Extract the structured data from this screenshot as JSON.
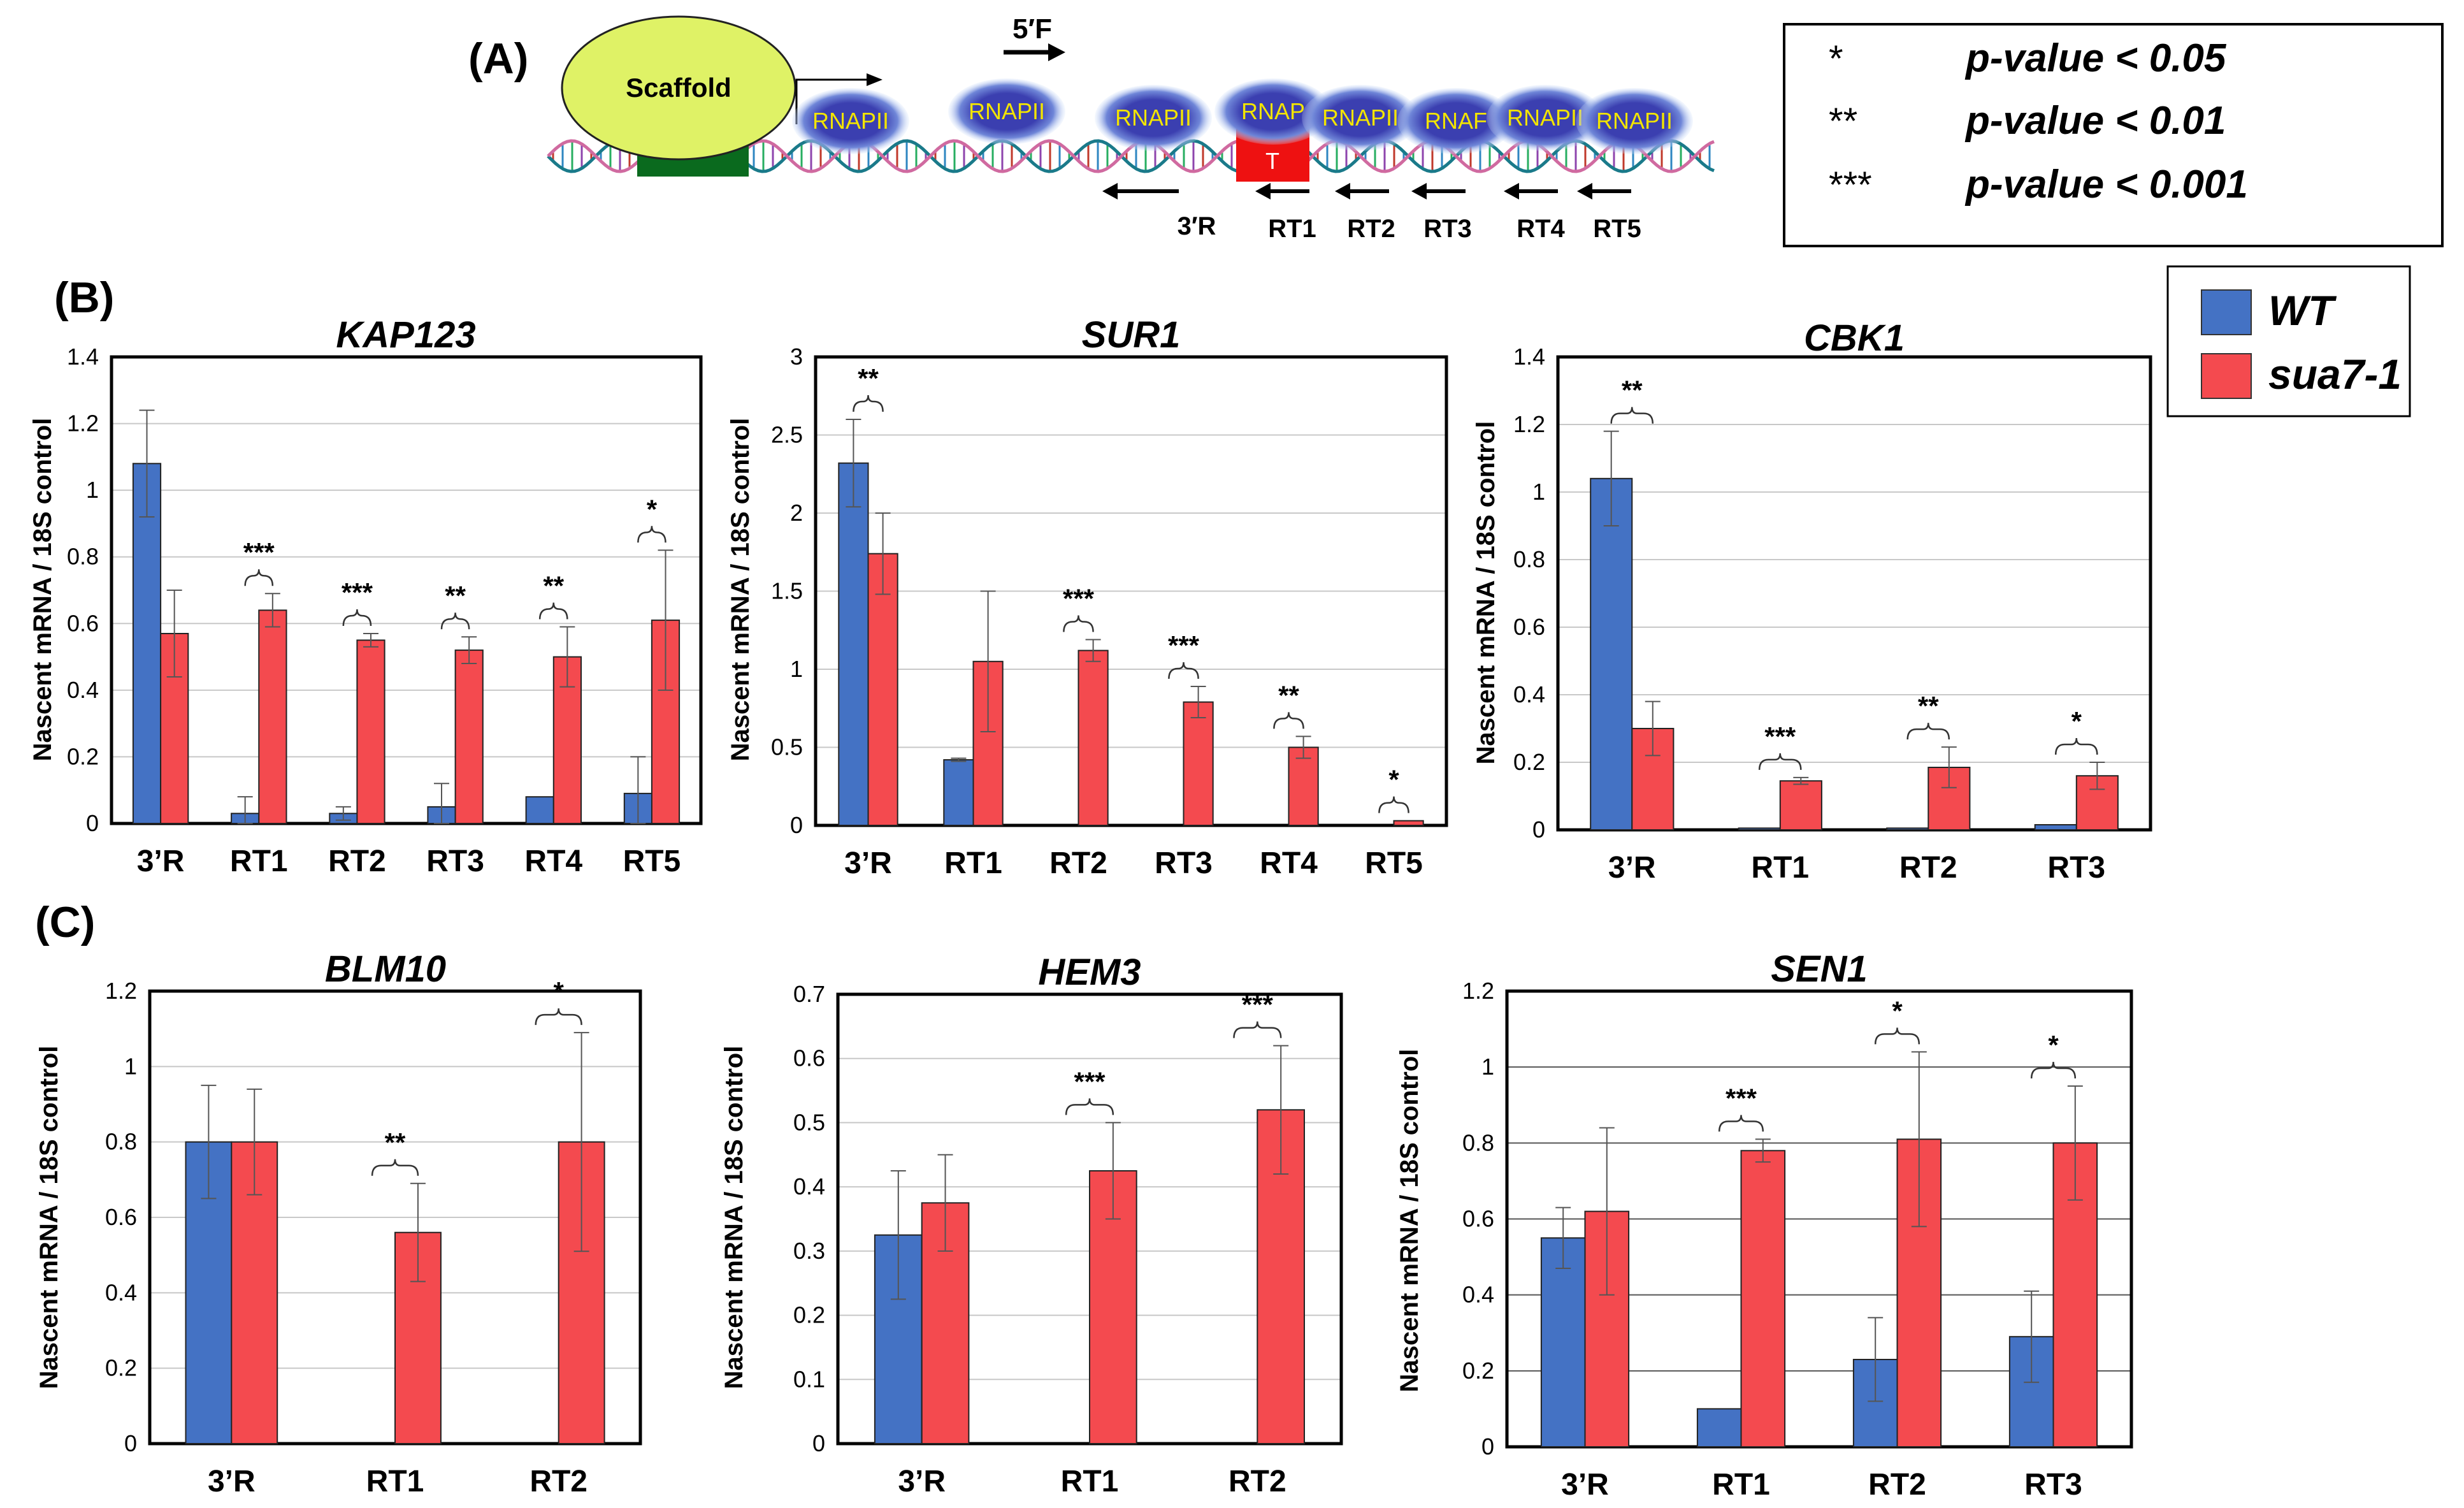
{
  "panel_labels": {
    "a": "(A)",
    "b": "(B)",
    "c": "(C)"
  },
  "colors": {
    "wt": "#4472c4",
    "mutant": "#f44a4f",
    "scaffold": "#dff266",
    "tbox": "#ee1111",
    "rnap": "#3b3fb0",
    "rnap_glow": "#a9c7f2",
    "element": "#0a6a1e"
  },
  "legend": {
    "items": [
      {
        "label": "WT",
        "color": "#4472c4"
      },
      {
        "label": "sua7-1",
        "color": "#f44a4f"
      }
    ]
  },
  "pvalue_key": [
    {
      "symbol": "*",
      "text": "p-value < 0.05"
    },
    {
      "symbol": "**",
      "text": "p-value < 0.01"
    },
    {
      "symbol": "***",
      "text": "p-value < 0.001"
    }
  ],
  "diagram": {
    "scaffold": "Scaffold",
    "rnap": [
      "RNAPII",
      "RNAPII",
      "RNAPII",
      "RNAP",
      "RNAPII",
      "RNAF",
      "RNAPII",
      "RNAPII"
    ],
    "tbox": "T",
    "forward_primer": "5′F",
    "reverse_primers": [
      "3′R",
      "RT1",
      "RT2",
      "RT3",
      "RT4",
      "RT5"
    ]
  },
  "chart_data": [
    {
      "type": "bar",
      "title": "KAP123",
      "ylabel": "Nascent mRNA / 18S control",
      "categories": [
        "3’R",
        "RT1",
        "RT2",
        "RT3",
        "RT4",
        "RT5"
      ],
      "ylim": [
        0,
        1.4
      ],
      "yticks": [
        0,
        0.2,
        0.4,
        0.6,
        0.8,
        1,
        1.2,
        1.4
      ],
      "grid": true,
      "series": [
        {
          "name": "WT",
          "values": [
            1.08,
            0.03,
            0.03,
            0.05,
            0.08,
            0.09
          ],
          "errors": [
            0.16,
            0.05,
            0.02,
            0.07,
            0.0,
            0.11
          ]
        },
        {
          "name": "sua7-1",
          "values": [
            0.57,
            0.64,
            0.55,
            0.52,
            0.5,
            0.61
          ],
          "errors": [
            0.13,
            0.05,
            0.02,
            0.04,
            0.09,
            0.21
          ]
        }
      ],
      "significance": [
        "",
        "***",
        "***",
        "**",
        "**",
        "*"
      ]
    },
    {
      "type": "bar",
      "title": "SUR1",
      "ylabel": "Nascent mRNA / 18S control",
      "categories": [
        "3’R",
        "RT1",
        "RT2",
        "RT3",
        "RT4",
        "RT5"
      ],
      "ylim": [
        0,
        3
      ],
      "yticks": [
        0,
        0.5,
        1,
        1.5,
        2,
        2.5,
        3
      ],
      "grid": true,
      "series": [
        {
          "name": "WT",
          "values": [
            2.32,
            0.42,
            0.0,
            0.0,
            0.0,
            0.0
          ],
          "errors": [
            0.28,
            0.01,
            0,
            0,
            0,
            0
          ]
        },
        {
          "name": "sua7-1",
          "values": [
            1.74,
            1.05,
            1.12,
            0.79,
            0.5,
            0.03
          ],
          "errors": [
            0.26,
            0.45,
            0.07,
            0.1,
            0.07,
            0.0
          ]
        }
      ],
      "significance": [
        "**",
        "",
        "***",
        "***",
        "**",
        "*"
      ]
    },
    {
      "type": "bar",
      "title": "CBK1",
      "ylabel": "Nascent mRNA / 18S control",
      "categories": [
        "3’R",
        "RT1",
        "RT2",
        "RT3"
      ],
      "ylim": [
        0,
        1.4
      ],
      "yticks": [
        0,
        0.2,
        0.4,
        0.6,
        0.8,
        1,
        1.2,
        1.4
      ],
      "grid": true,
      "series": [
        {
          "name": "WT",
          "values": [
            1.04,
            0.005,
            0.005,
            0.015
          ],
          "errors": [
            0.14,
            0,
            0,
            0
          ]
        },
        {
          "name": "sua7-1",
          "values": [
            0.3,
            0.145,
            0.185,
            0.16
          ],
          "errors": [
            0.08,
            0.01,
            0.06,
            0.04
          ]
        }
      ],
      "significance": [
        "**",
        "***",
        "**",
        "*"
      ]
    },
    {
      "type": "bar",
      "title": "BLM10",
      "ylabel": "Nascent mRNA / 18S control",
      "categories": [
        "3’R",
        "RT1",
        "RT2"
      ],
      "ylim": [
        0,
        1.2
      ],
      "yticks": [
        0,
        0.2,
        0.4,
        0.6,
        0.8,
        1,
        1.2
      ],
      "grid": true,
      "series": [
        {
          "name": "WT",
          "values": [
            0.8,
            0.0,
            0.0
          ],
          "errors": [
            0.15,
            0,
            0
          ]
        },
        {
          "name": "sua7-1",
          "values": [
            0.8,
            0.56,
            0.8
          ],
          "errors": [
            0.14,
            0.13,
            0.29
          ]
        }
      ],
      "significance": [
        "",
        "**",
        "*"
      ]
    },
    {
      "type": "bar",
      "title": "HEM3",
      "ylabel": "Nascent mRNA / 18S control",
      "categories": [
        "3’R",
        "RT1",
        "RT2"
      ],
      "ylim": [
        0,
        0.7
      ],
      "yticks": [
        0,
        0.1,
        0.2,
        0.3,
        0.4,
        0.5,
        0.6,
        0.7
      ],
      "grid": true,
      "series": [
        {
          "name": "WT",
          "values": [
            0.325,
            0.0,
            0.0
          ],
          "errors": [
            0.1,
            0,
            0
          ]
        },
        {
          "name": "sua7-1",
          "values": [
            0.375,
            0.425,
            0.52
          ],
          "errors": [
            0.075,
            0.075,
            0.1
          ]
        }
      ],
      "significance": [
        "",
        "***",
        "***"
      ]
    },
    {
      "type": "bar",
      "title": "SEN1",
      "ylabel": "Nascent mRNA / 18S control",
      "categories": [
        "3’R",
        "RT1",
        "RT2",
        "RT3"
      ],
      "ylim": [
        0,
        1.2
      ],
      "yticks": [
        0,
        0.2,
        0.4,
        0.6,
        0.8,
        1,
        1.2
      ],
      "grid": true,
      "series": [
        {
          "name": "WT",
          "values": [
            0.55,
            0.1,
            0.23,
            0.29
          ],
          "errors": [
            0.08,
            0,
            0.11,
            0.12
          ]
        },
        {
          "name": "sua7-1",
          "values": [
            0.62,
            0.78,
            0.81,
            0.8
          ],
          "errors": [
            0.22,
            0.03,
            0.23,
            0.15
          ]
        }
      ],
      "significance": [
        "",
        "***",
        "*",
        "*"
      ]
    }
  ]
}
